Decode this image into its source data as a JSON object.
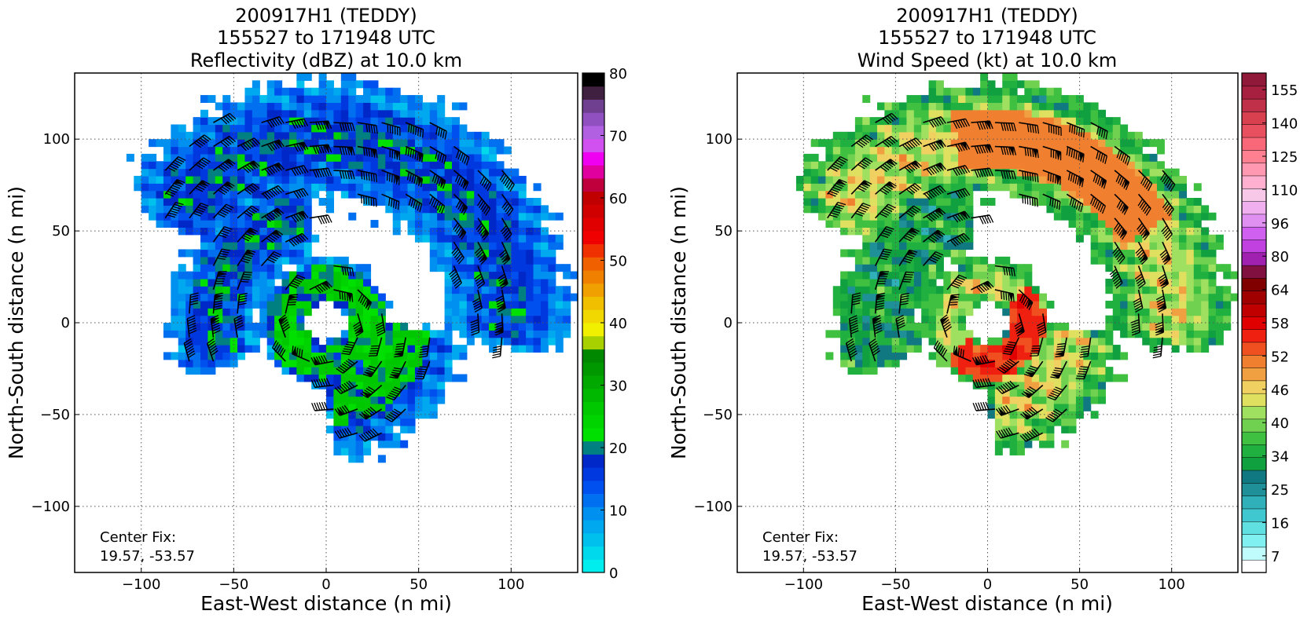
{
  "chart_data": [
    {
      "type": "heatmap",
      "title": [
        "200917H1 (TEDDY)",
        "155527 to 171948 UTC",
        "Reflectivity (dBZ) at 10.0 km"
      ],
      "xlabel": "East-West distance (n mi)",
      "ylabel": "North-South distance (n mi)",
      "xlim": [
        -136,
        136
      ],
      "ylim": [
        -136,
        136
      ],
      "xticks": [
        -100,
        -50,
        0,
        50,
        100
      ],
      "yticks": [
        -100,
        -50,
        0,
        50,
        100
      ],
      "grid": true,
      "annotation": [
        "Center Fix:",
        "19.57, -53.57"
      ],
      "field": "reflectivity",
      "colorbar": {
        "min": 0,
        "max": 80,
        "ticks": [
          0,
          10,
          20,
          30,
          40,
          50,
          60,
          70,
          80
        ],
        "colors": [
          "#00eeee",
          "#00d8ec",
          "#00c0ee",
          "#00a8f0",
          "#0090f0",
          "#0070f0",
          "#0050f0",
          "#0038e0",
          "#0028c8",
          "#008080",
          "#00e000",
          "#00d400",
          "#00c800",
          "#00b800",
          "#00a800",
          "#009800",
          "#008800",
          "#a8d000",
          "#f0f000",
          "#f0d800",
          "#f0c000",
          "#f0a000",
          "#f08000",
          "#f06000",
          "#f03000",
          "#f00000",
          "#e00000",
          "#d00000",
          "#c00000",
          "#c0003c",
          "#e000a0",
          "#f000f0",
          "#d050f0",
          "#b060e0",
          "#9050c0",
          "#704090",
          "#402040",
          "#000000"
        ]
      }
    },
    {
      "type": "heatmap",
      "title": [
        "200917H1 (TEDDY)",
        "155527 to 171948 UTC",
        "Wind Speed (kt) at 10.0 km"
      ],
      "xlabel": "East-West distance (n mi)",
      "ylabel": "North-South distance (n mi)",
      "xlim": [
        -136,
        136
      ],
      "ylim": [
        -136,
        136
      ],
      "xticks": [
        -100,
        -50,
        0,
        50,
        100
      ],
      "yticks": [
        -100,
        -50,
        0,
        50,
        100
      ],
      "grid": true,
      "annotation": [
        "Center Fix:",
        "19.57, -53.57"
      ],
      "field": "windspeed",
      "colorbar": {
        "ticks": [
          "7",
          "16",
          "25",
          "34",
          "40",
          "46",
          "52",
          "58",
          "64",
          "80",
          "96",
          "110",
          "125",
          "140",
          "155"
        ],
        "colors": [
          "#ffffff",
          "#c0fcfc",
          "#80f0f0",
          "#60e0e0",
          "#40c8d0",
          "#30b0b8",
          "#209098",
          "#107880",
          "#10a040",
          "#20b040",
          "#40c040",
          "#70d050",
          "#a0e060",
          "#e0e060",
          "#f0d060",
          "#f0a040",
          "#f08030",
          "#f05020",
          "#f02010",
          "#e00000",
          "#c00000",
          "#a00000",
          "#800000",
          "#801040",
          "#a020b0",
          "#c040e0",
          "#d060f0",
          "#e090f0",
          "#f0b0f0",
          "#f8c8e8",
          "#ffb0d0",
          "#ff98b0",
          "#ff8090",
          "#f86878",
          "#e85060",
          "#d84050",
          "#c03048",
          "#a82040",
          "#901838"
        ]
      }
    }
  ]
}
